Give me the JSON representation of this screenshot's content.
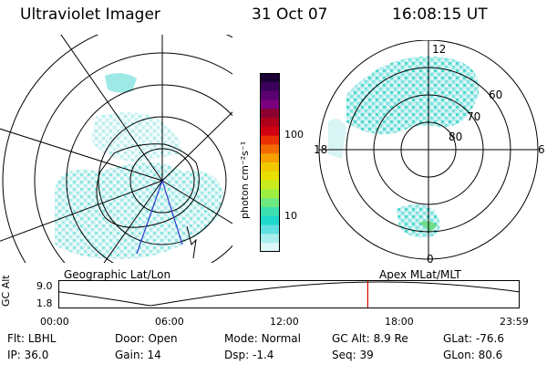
{
  "header": {
    "instrument": "Ultraviolet Imager",
    "date": "31 Oct 07",
    "time": "16:08:15 UT"
  },
  "left_map": {
    "caption": "Geographic Lat/Lon"
  },
  "right_map": {
    "caption": "Apex  MLat/MLT",
    "mlt_labels": {
      "top": "12",
      "left": "18",
      "right": "6",
      "bottom": "0"
    },
    "lat_labels": [
      "60",
      "70",
      "80"
    ]
  },
  "colorbar": {
    "unit": "photon cm⁻²s⁻¹",
    "ticks": [
      "100",
      "10"
    ],
    "colors": [
      "#1a0033",
      "#3a005a",
      "#5a0070",
      "#7a0080",
      "#8c0030",
      "#b0001a",
      "#d00010",
      "#e83000",
      "#f26a00",
      "#f5a000",
      "#f2c800",
      "#e8e000",
      "#c8ec20",
      "#9ef040",
      "#6ee880",
      "#3de0b0",
      "#20d8cc",
      "#60e0e0",
      "#a8eeee",
      "#dcf8f8"
    ]
  },
  "timeline": {
    "ylabel": "GC Alt",
    "ymax": "9.0",
    "ymin": "1.8",
    "xticks": [
      "00:00",
      "06:00",
      "12:00",
      "18:00",
      "23:59"
    ],
    "current_time_fraction": 0.672
  },
  "info": {
    "flt_label": "Flt:",
    "flt": "LBHL",
    "ip_label": "IP:",
    "ip": "36.0",
    "door_label": "Door:",
    "door": "Open",
    "gain_label": "Gain:",
    "gain": "14",
    "mode_label": "Mode:",
    "mode": "Normal",
    "dsp_label": "Dsp:",
    "dsp": "-1.4",
    "gcalt_label": "GC Alt:",
    "gcalt": "8.9 Re",
    "seq_label": "Seq:",
    "seq": "39",
    "glat_label": "GLat:",
    "glat": "-76.6",
    "glon_label": "GLon:",
    "glon": "80.6"
  }
}
